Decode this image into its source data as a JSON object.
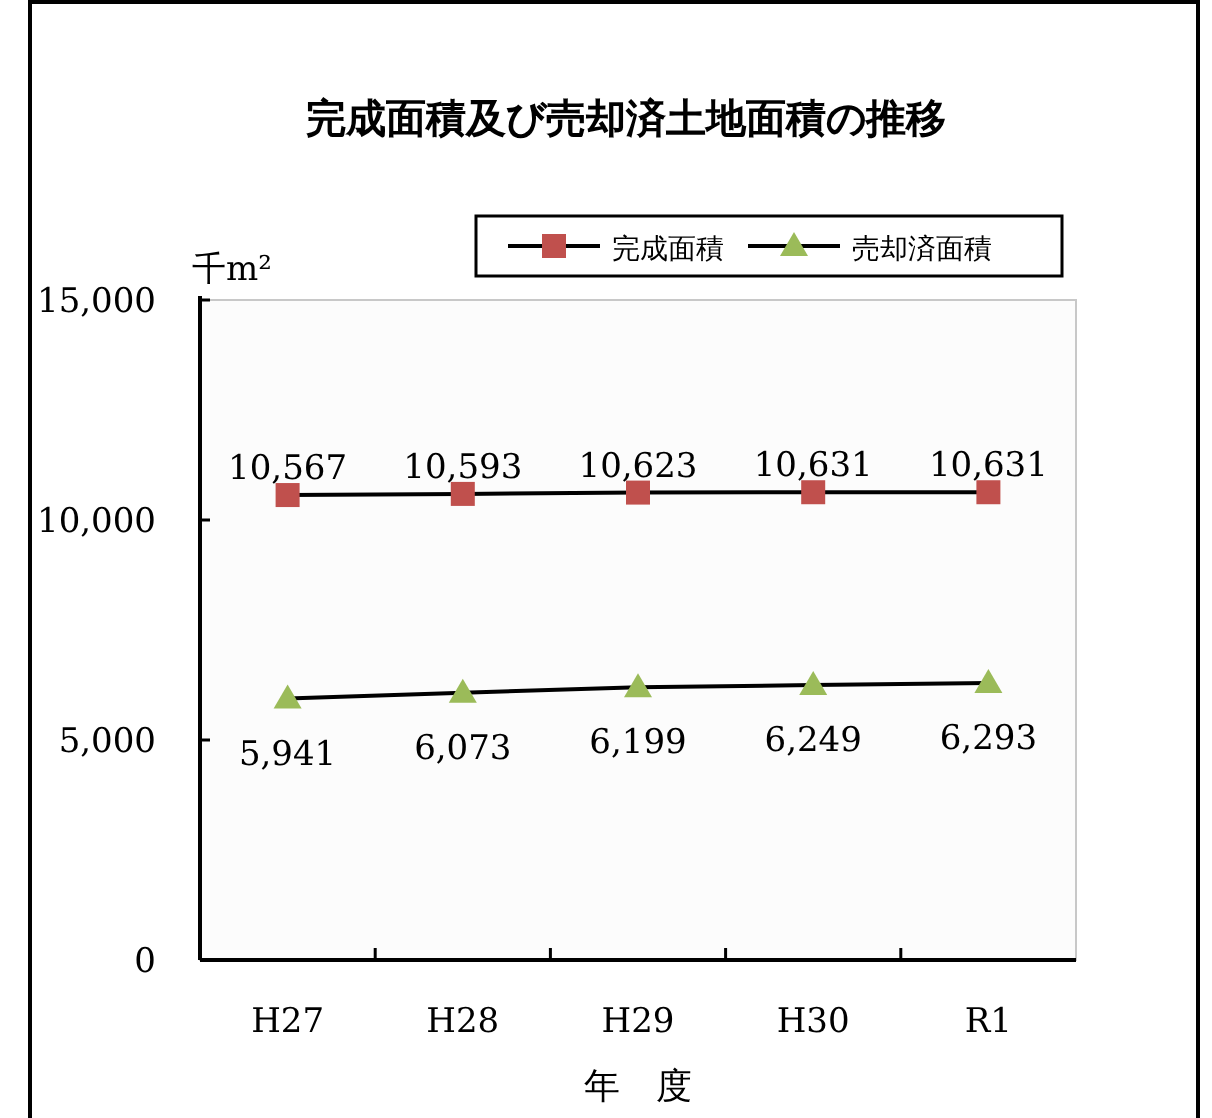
{
  "chart_data": {
    "type": "line",
    "title": "完成面積及び売却済土地面積の推移",
    "xlabel": "年　度",
    "ylabel": "千m²",
    "categories": [
      "H27",
      "H28",
      "H29",
      "H30",
      "R1"
    ],
    "series": [
      {
        "name": "完成面積",
        "color": "#c0504d",
        "marker": "square",
        "values": [
          10567,
          10593,
          10623,
          10631,
          10631
        ],
        "value_labels": [
          "10,567",
          "10,593",
          "10,623",
          "10,631",
          "10,631"
        ]
      },
      {
        "name": "売却済面積",
        "color": "#9bbb59",
        "marker": "triangle",
        "values": [
          5941,
          6073,
          6199,
          6249,
          6293
        ],
        "value_labels": [
          "5,941",
          "6,073",
          "6,199",
          "6,249",
          "6,293"
        ]
      }
    ],
    "ylim": [
      0,
      15000
    ],
    "yticks": [
      0,
      {
        "value": 5000,
        "label": "5,000"
      },
      {
        "value": 10000,
        "label": "10,000"
      },
      {
        "value": 15000,
        "label": "15,000"
      }
    ],
    "grid": false,
    "legend": "top right"
  }
}
